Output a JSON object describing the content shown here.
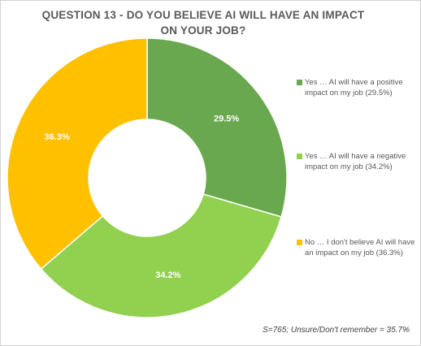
{
  "chart_data": {
    "type": "pie",
    "title": "QUESTION 13 - DO YOU BELIEVE AI WILL HAVE AN IMPACT ON YOUR JOB?",
    "categories": [
      "Yes … AI will have a positive impact on my job (29.5%)",
      "Yes … AI will have a negative impact on my job (34.2%)",
      "No … I don't believe AI will have an impact on my job (36.3%)"
    ],
    "values": [
      29.5,
      34.2,
      36.3
    ],
    "data_labels": [
      "29.5%",
      "34.2%",
      "36.3%"
    ],
    "colors": [
      "#6aa84f",
      "#92d050",
      "#ffc000"
    ],
    "legend_position": "right",
    "footnote": "S=765; Unsure/Don't remember = 35.7%",
    "style": "donut"
  }
}
